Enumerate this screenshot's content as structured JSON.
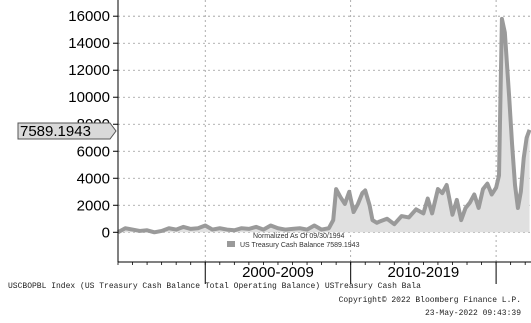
{
  "chart_data": {
    "type": "area",
    "title": "",
    "xlabel": "",
    "ylabel": "",
    "ylim": [
      -2200,
      17200
    ],
    "xlim": [
      1994.0,
      2022.4
    ],
    "yticks": [
      0,
      2000,
      4000,
      6000,
      8000,
      10000,
      12000,
      14000,
      16000
    ],
    "ytick_labels": [
      "0",
      "2000",
      "4000",
      "6000",
      "8000",
      "10000",
      "12000",
      "14000",
      "16000"
    ],
    "period_labels": [
      {
        "label": "2000-2009",
        "start": 2000,
        "end": 2010
      },
      {
        "label": "2010-2019",
        "start": 2010,
        "end": 2020
      }
    ],
    "grid": true,
    "legend_position": "bottom-center",
    "legend": {
      "note": "Normalized As Of 09/30/1994",
      "entry": "US Treasury Cash Balance  7589.1943"
    },
    "last_value_label": "7589.1943",
    "series": [
      {
        "name": "US Treasury Cash Balance",
        "color": "#9a9a9a",
        "area_color": "#e0e0e0",
        "x": [
          1994.0,
          1994.5,
          1995.0,
          1995.5,
          1996.0,
          1996.5,
          1997.0,
          1997.5,
          1998.0,
          1998.5,
          1999.0,
          1999.5,
          2000.0,
          2000.5,
          2001.0,
          2001.5,
          2002.0,
          2002.5,
          2003.0,
          2003.5,
          2004.0,
          2004.5,
          2005.0,
          2005.5,
          2006.0,
          2006.5,
          2007.0,
          2007.5,
          2008.0,
          2008.5,
          2008.8,
          2009.0,
          2009.3,
          2009.6,
          2009.9,
          2010.2,
          2010.5,
          2010.8,
          2011.0,
          2011.3,
          2011.5,
          2011.8,
          2012.0,
          2012.5,
          2013.0,
          2013.5,
          2014.0,
          2014.5,
          2015.0,
          2015.3,
          2015.6,
          2016.0,
          2016.3,
          2016.6,
          2017.0,
          2017.3,
          2017.6,
          2017.9,
          2018.2,
          2018.5,
          2018.8,
          2019.1,
          2019.4,
          2019.7,
          2020.0,
          2020.2,
          2020.4,
          2020.6,
          2020.9,
          2021.1,
          2021.3,
          2021.5,
          2021.7,
          2021.9,
          2022.1,
          2022.3
        ],
        "values": [
          0,
          300,
          200,
          100,
          150,
          0,
          100,
          300,
          200,
          400,
          250,
          300,
          500,
          200,
          300,
          200,
          150,
          300,
          250,
          400,
          200,
          500,
          300,
          200,
          250,
          300,
          200,
          500,
          200,
          300,
          900,
          3200,
          2600,
          2100,
          3000,
          1500,
          2100,
          2900,
          3100,
          2000,
          900,
          700,
          800,
          1000,
          600,
          1200,
          1100,
          1700,
          1400,
          2500,
          1400,
          3200,
          2900,
          3500,
          1300,
          2400,
          900,
          1800,
          2200,
          2800,
          1800,
          3200,
          3600,
          2800,
          3300,
          4200,
          15800,
          14800,
          10000,
          6500,
          3500,
          1800,
          3000,
          5500,
          7000,
          7589
        ]
      }
    ]
  },
  "footer": {
    "line1": "USCBOPBL Index (US Treasury Cash Balance Total Operating Balance) USTreasury Cash Bala",
    "line2": "Copyright© 2022 Bloomberg Finance L.P.",
    "line3": "23-May-2022 09:43:39"
  }
}
